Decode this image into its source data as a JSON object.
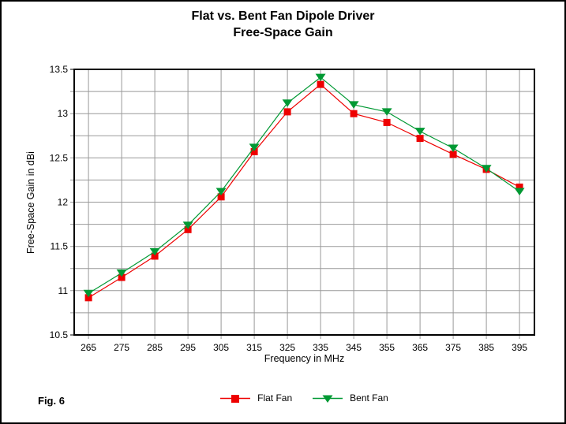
{
  "figure": {
    "title_line1": "Flat vs. Bent Fan Dipole Driver",
    "title_line2": "Free-Space Gain",
    "caption": "Fig. 6"
  },
  "chart_data": {
    "type": "line",
    "title": "Flat vs. Bent Fan Dipole Driver Free-Space Gain",
    "xlabel": "Frequency in MHz",
    "ylabel": "Free-Space Gain in dBi",
    "x": [
      265,
      275,
      285,
      295,
      305,
      315,
      325,
      335,
      345,
      355,
      365,
      375,
      385,
      395
    ],
    "series": [
      {
        "name": "Flat Fan",
        "marker": "square",
        "color": "#ee0000",
        "values": [
          10.92,
          11.15,
          11.39,
          11.69,
          12.06,
          12.57,
          13.02,
          13.33,
          13.0,
          12.9,
          12.72,
          12.54,
          12.37,
          12.17
        ]
      },
      {
        "name": "Bent Fan",
        "marker": "triangle-down",
        "color": "#009933",
        "values": [
          10.97,
          11.2,
          11.44,
          11.74,
          12.12,
          12.62,
          13.12,
          13.41,
          13.1,
          13.02,
          12.8,
          12.61,
          12.38,
          12.12
        ]
      }
    ],
    "x_ticks": [
      265,
      275,
      285,
      295,
      305,
      315,
      325,
      335,
      345,
      355,
      365,
      375,
      385,
      395
    ],
    "y_ticks": [
      10.5,
      11,
      11.5,
      12,
      12.5,
      13,
      13.5
    ],
    "y_tick_labels": [
      "10.5",
      "11",
      "11.5",
      "12",
      "12.5",
      "13",
      "13.5"
    ],
    "y_minor_step": 0.25,
    "xlim": [
      260.7,
      399.5
    ],
    "ylim": [
      10.5,
      13.5
    ],
    "grid": true,
    "legend_position": "bottom-center",
    "colors": {
      "grid": "#999999",
      "axis": "#000000",
      "background": "#ffffff"
    }
  }
}
